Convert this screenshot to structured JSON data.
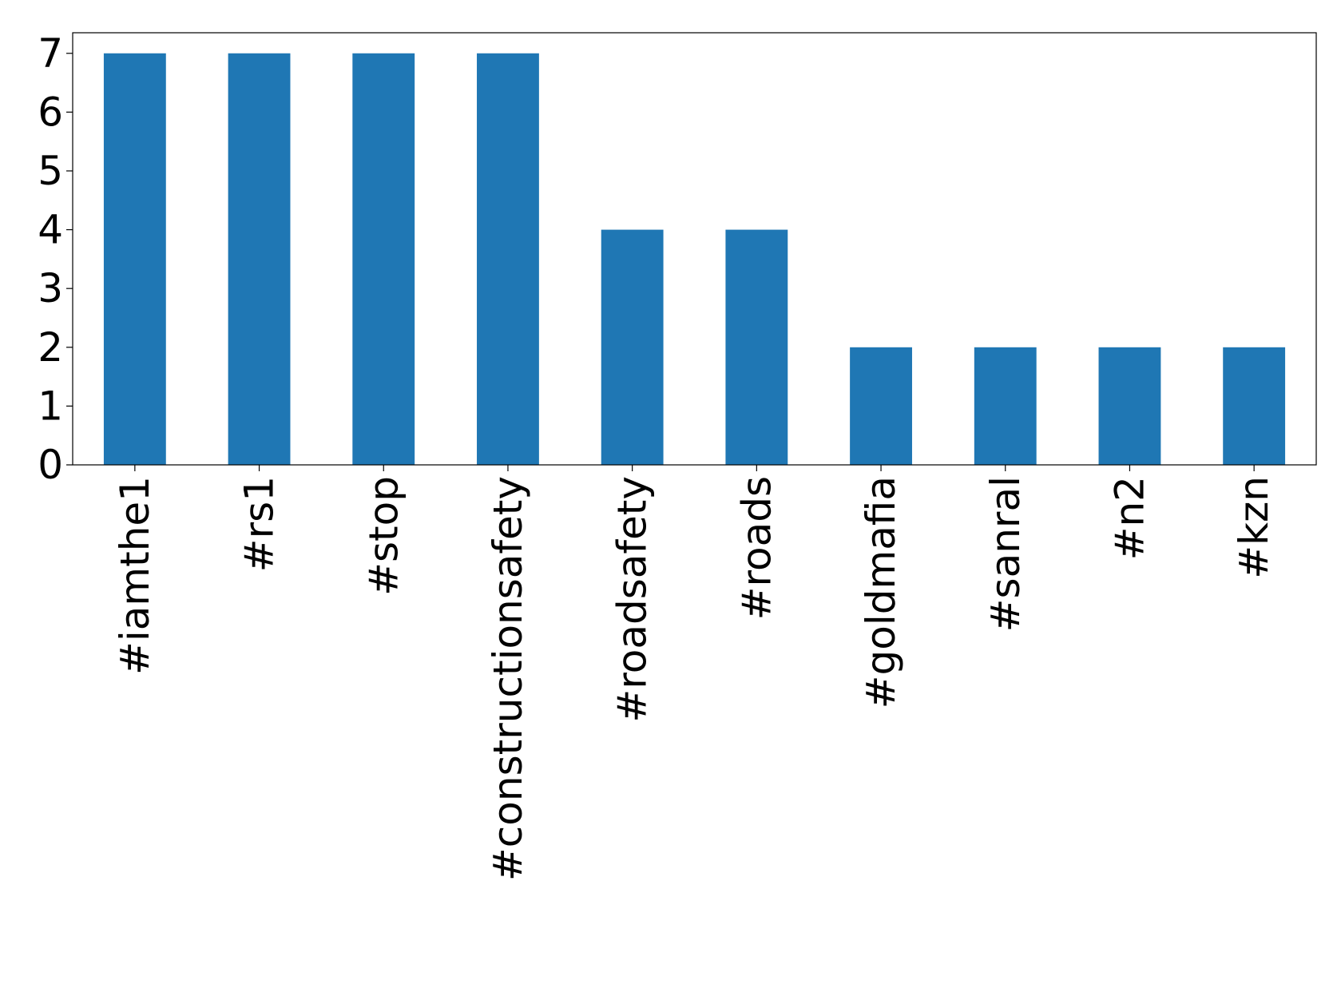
{
  "chart_data": {
    "type": "bar",
    "categories": [
      "#iamthe1",
      "#rs1",
      "#stop",
      "#constructionsafety",
      "#roadsafety",
      "#roads",
      "#goldmafia",
      "#sanral",
      "#n2",
      "#kzn"
    ],
    "values": [
      7,
      7,
      7,
      7,
      4,
      4,
      2,
      2,
      2,
      2
    ],
    "color": "#1f77b4",
    "ylim": [
      0,
      7.35
    ],
    "yticks": [
      0,
      1,
      2,
      3,
      4,
      5,
      6,
      7
    ],
    "grid": false
  }
}
